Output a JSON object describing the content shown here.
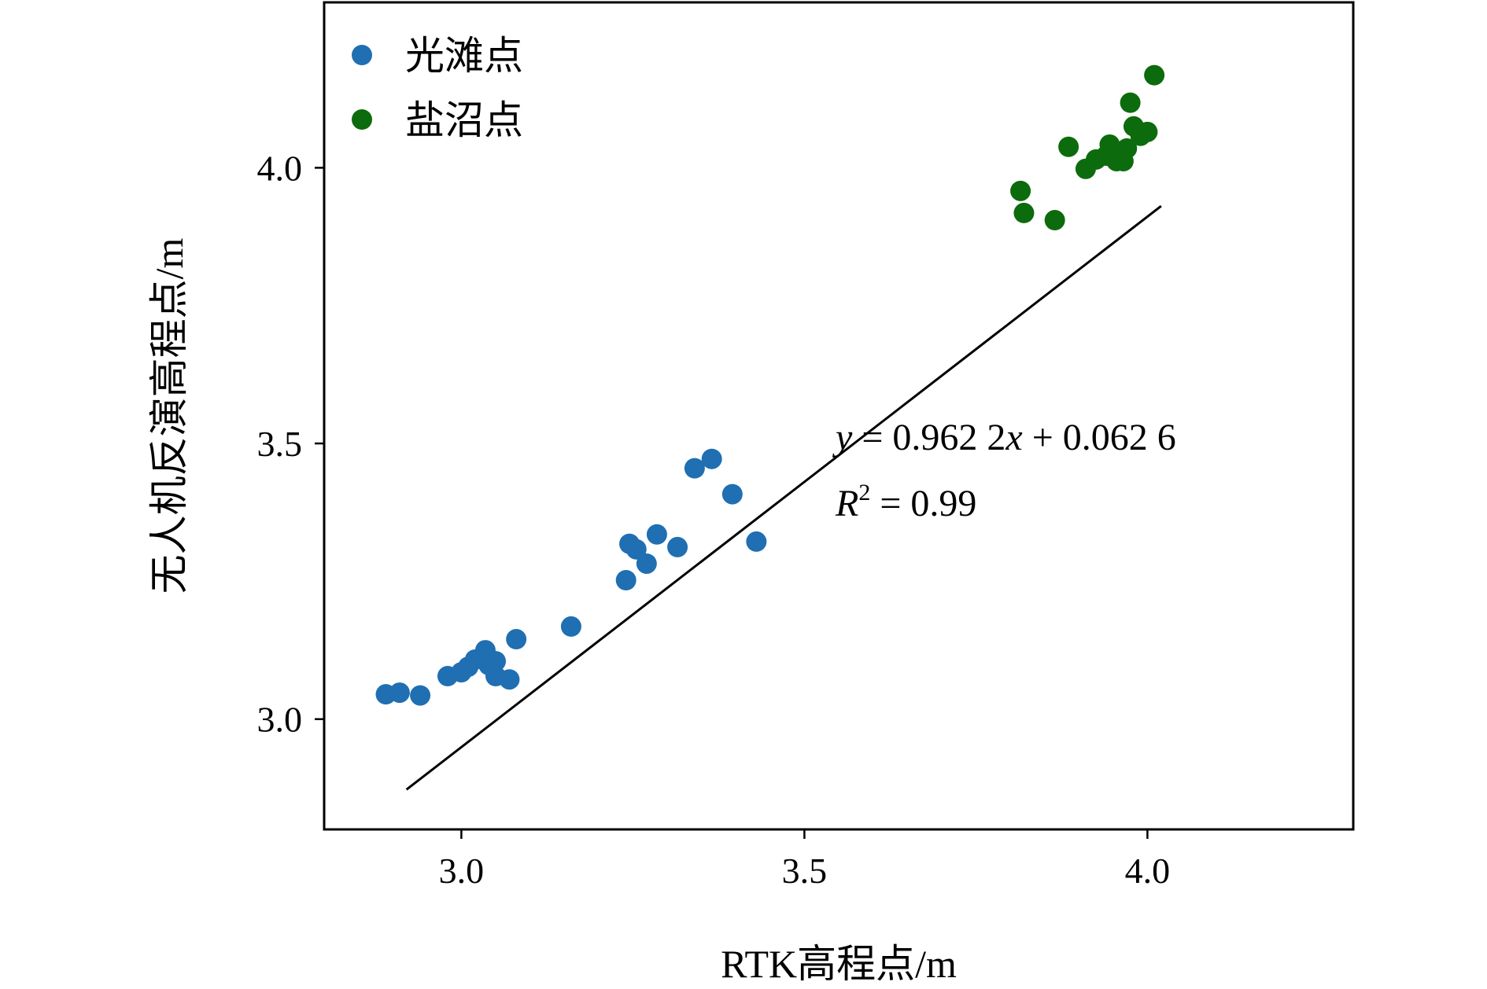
{
  "chart_data": {
    "type": "scatter",
    "xlabel": "RTK高程点/m",
    "ylabel": "无人机反演高程点/m",
    "xlim": [
      2.8,
      4.3
    ],
    "ylim": [
      2.8,
      4.3
    ],
    "xticks": [
      3.0,
      3.5,
      4.0
    ],
    "yticks": [
      3.0,
      3.5,
      4.0
    ],
    "xtick_labels": [
      "3.0",
      "3.5",
      "4.0"
    ],
    "ytick_labels": [
      "3.0",
      "3.5",
      "4.0"
    ],
    "grid": false,
    "legend_position": "top-left",
    "series": [
      {
        "name": "光滩点",
        "color": "#1f6fb2",
        "points": [
          [
            2.89,
            3.045
          ],
          [
            2.91,
            3.048
          ],
          [
            2.94,
            3.043
          ],
          [
            2.98,
            3.078
          ],
          [
            3.0,
            3.085
          ],
          [
            3.01,
            3.095
          ],
          [
            3.02,
            3.108
          ],
          [
            3.035,
            3.125
          ],
          [
            3.04,
            3.098
          ],
          [
            3.05,
            3.105
          ],
          [
            3.05,
            3.078
          ],
          [
            3.07,
            3.072
          ],
          [
            3.08,
            3.145
          ],
          [
            3.16,
            3.168
          ],
          [
            3.24,
            3.252
          ],
          [
            3.245,
            3.318
          ],
          [
            3.255,
            3.308
          ],
          [
            3.27,
            3.282
          ],
          [
            3.285,
            3.335
          ],
          [
            3.315,
            3.312
          ],
          [
            3.34,
            3.455
          ],
          [
            3.365,
            3.472
          ],
          [
            3.395,
            3.408
          ],
          [
            3.43,
            3.322
          ]
        ]
      },
      {
        "name": "盐沼点",
        "color": "#0c6b0c",
        "points": [
          [
            3.815,
            3.958
          ],
          [
            3.82,
            3.918
          ],
          [
            3.865,
            3.905
          ],
          [
            3.885,
            4.038
          ],
          [
            3.91,
            3.998
          ],
          [
            3.925,
            4.015
          ],
          [
            3.94,
            4.022
          ],
          [
            3.945,
            4.042
          ],
          [
            3.955,
            4.012
          ],
          [
            3.965,
            4.012
          ],
          [
            3.97,
            4.035
          ],
          [
            3.975,
            4.118
          ],
          [
            3.98,
            4.075
          ],
          [
            3.99,
            4.058
          ],
          [
            4.0,
            4.065
          ],
          [
            4.01,
            4.168
          ]
        ]
      }
    ],
    "fit_line": {
      "slope": 0.9622,
      "intercept": 0.0626,
      "x_range": [
        2.92,
        4.02
      ]
    },
    "annotations": {
      "equation_lhs": "y",
      "equation_rhs": " = 0.962 2",
      "equation_var": "x",
      "equation_tail": " + 0.062 6",
      "r2_var": "R",
      "r2_sup": "2",
      "r2_value": " = 0.99"
    }
  }
}
